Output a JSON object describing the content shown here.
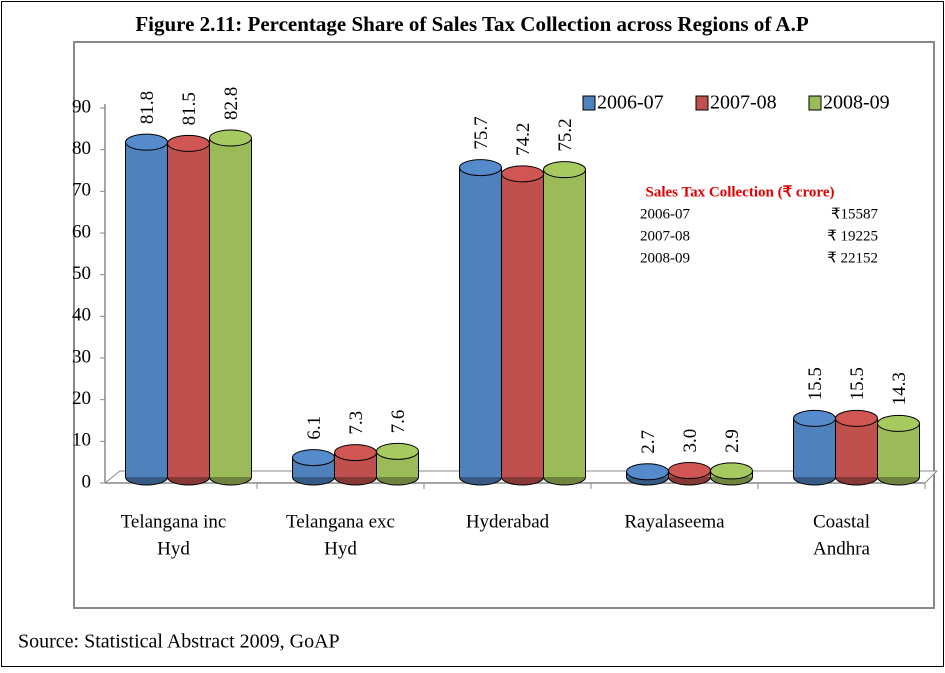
{
  "chart_data": {
    "type": "bar",
    "title": "Figure 2.11: Percentage Share of Sales Tax Collection across Regions of A.P",
    "categories": [
      [
        "Telangana inc",
        "Hyd"
      ],
      [
        "Telangana exc",
        "Hyd"
      ],
      [
        "Hyderabad"
      ],
      [
        "Rayalaseema"
      ],
      [
        "Coastal",
        "Andhra"
      ]
    ],
    "series": [
      {
        "name": "2006-07",
        "color": "#4f81bd",
        "values": [
          81.8,
          6.1,
          75.7,
          2.7,
          15.5
        ],
        "value_labels": [
          "81.8",
          "6.1",
          "75.7",
          "2.7",
          "15.5"
        ]
      },
      {
        "name": "2007-08",
        "color": "#c0504d",
        "values": [
          81.5,
          7.3,
          74.2,
          3.0,
          15.5
        ],
        "value_labels": [
          "81.5",
          "7.3",
          "74.2",
          "3.0",
          "15.5"
        ]
      },
      {
        "name": "2008-09",
        "color": "#9bbb59",
        "values": [
          82.8,
          7.6,
          75.2,
          2.9,
          14.3
        ],
        "value_labels": [
          "82.8",
          "7.6",
          "75.2",
          "2.9",
          "14.3"
        ]
      }
    ],
    "ylim": [
      0,
      90
    ],
    "yticks": [
      0,
      10,
      20,
      30,
      40,
      50,
      60,
      70,
      80,
      90
    ],
    "legend": "top-right",
    "note": {
      "title": "Sales Tax Collection (₹ crore)",
      "rows": [
        [
          "2006-07",
          "₹15587"
        ],
        [
          "2007-08",
          "₹ 19225"
        ],
        [
          "2008-09",
          "₹ 22152"
        ]
      ]
    },
    "source": "Source: Statistical Abstract 2009, GoAP"
  }
}
